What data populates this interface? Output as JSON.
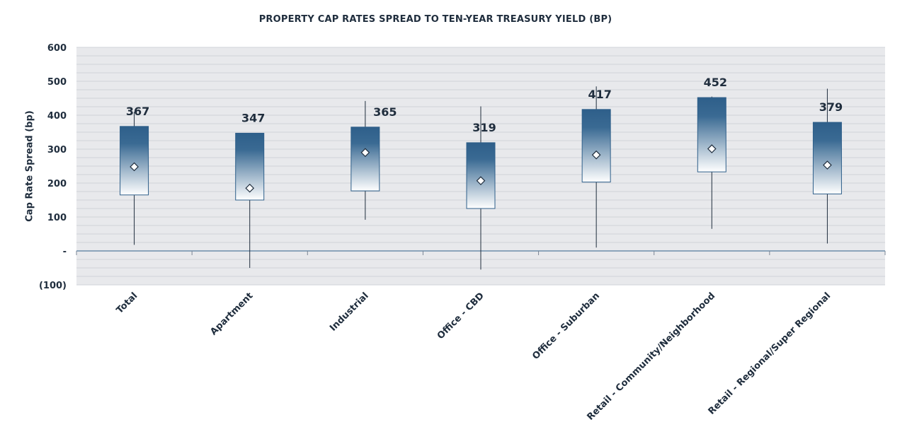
{
  "chart_data": {
    "type": "box",
    "title": "PROPERTY CAP RATES SPREAD TO TEN-YEAR TREASURY YIELD (BP)",
    "ylabel": "Cap Rate Spread (bp)",
    "xlabel": "",
    "ylim": [
      -100,
      600
    ],
    "yticks": [
      600,
      500,
      400,
      300,
      200,
      100,
      0,
      -100
    ],
    "ytick_labels": [
      "600",
      "500",
      "400",
      "300",
      "200",
      "100",
      "-",
      "(100)"
    ],
    "grid": true,
    "categories": [
      "Total",
      "Apartment",
      "Industrial",
      "Office - CBD",
      "Office - Suburban",
      "Retail - Community/Neighborhood",
      "Retail - Regional/Super Regional"
    ],
    "series": [
      {
        "box_top": [
          367,
          347,
          365,
          319,
          417,
          452,
          379
        ],
        "box_bottom": [
          165,
          150,
          177,
          125,
          203,
          233,
          168
        ],
        "whisker_high": [
          410,
          347,
          442,
          426,
          485,
          455,
          478
        ],
        "whisker_low": [
          18,
          -50,
          92,
          -55,
          10,
          65,
          22
        ],
        "mean": [
          248,
          185,
          290,
          207,
          283,
          301,
          253
        ]
      }
    ],
    "data_labels": [
      "367",
      "347",
      "365",
      "319",
      "417",
      "452",
      "379"
    ],
    "colors": {
      "box_top": "#2e5f8a",
      "box_bottom": "#ffffff",
      "plot_background": "#e8e9ec",
      "gridline": "#cfd2d8",
      "zero_line": "#2e5f8a",
      "text": "#1f2d3d"
    }
  }
}
